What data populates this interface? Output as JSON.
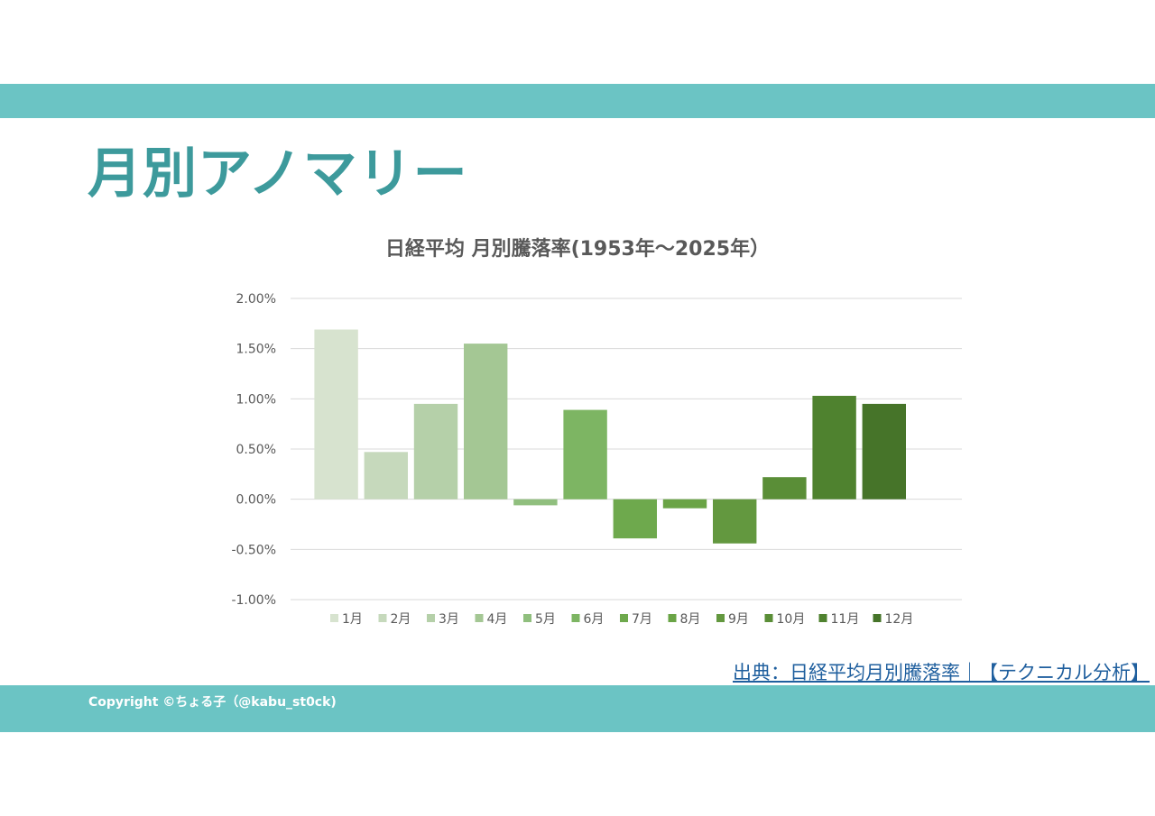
{
  "header": {
    "title": "月別アノマリー",
    "title_color": "#3d9a9c",
    "band_color": "#6bc4c4"
  },
  "chart_data": {
    "type": "bar",
    "title": "日経平均 月別騰落率(1953年～2025年）",
    "categories": [
      "1月",
      "2月",
      "3月",
      "4月",
      "5月",
      "6月",
      "7月",
      "8月",
      "9月",
      "10月",
      "11月",
      "12月"
    ],
    "values": [
      1.69,
      0.47,
      0.95,
      1.55,
      -0.06,
      0.89,
      -0.39,
      -0.09,
      -0.44,
      0.22,
      1.03,
      0.95
    ],
    "value_unit": "%",
    "colors": [
      "#d7e3cf",
      "#c6d9bc",
      "#b5d0a9",
      "#a4c794",
      "#90bf7e",
      "#7db563",
      "#6ea94d",
      "#6aa446",
      "#63983f",
      "#5a8e37",
      "#4f822f",
      "#467429"
    ],
    "ylim": [
      -1.0,
      2.0
    ],
    "yticks": [
      "2.00%",
      "1.50%",
      "1.00%",
      "0.50%",
      "0.00%",
      "-0.50%",
      "-1.00%"
    ],
    "ytick_values": [
      2.0,
      1.5,
      1.0,
      0.5,
      0.0,
      -0.5,
      -1.0
    ],
    "grid": true,
    "legend_position": "bottom"
  },
  "footer": {
    "source_text": "出典：日経平均月別騰落率｜【テクニカル分析】",
    "source_color": "#1f5f9e",
    "copyright": "Copyright ©ちょる子（@kabu_st0ck)"
  }
}
